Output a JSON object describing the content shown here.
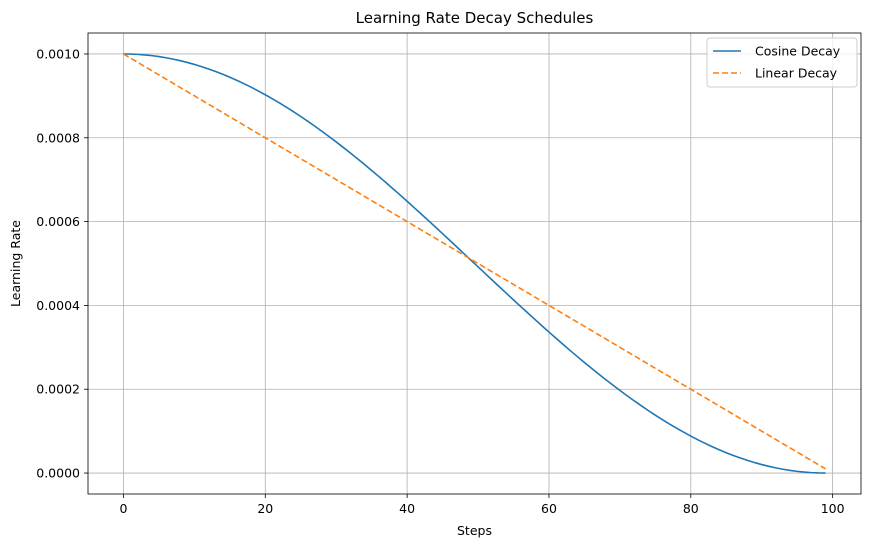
{
  "chart_data": {
    "type": "line",
    "title": "Learning Rate Decay Schedules",
    "xlabel": "Steps",
    "ylabel": "Learning Rate",
    "xlim": [
      -5,
      104
    ],
    "ylim": [
      -5e-05,
      0.00105
    ],
    "xticks": [
      0,
      20,
      40,
      60,
      80,
      100
    ],
    "xtick_labels": [
      "0",
      "20",
      "40",
      "60",
      "80",
      "100"
    ],
    "yticks": [
      0,
      0.0002,
      0.0004,
      0.0006,
      0.0008,
      0.001
    ],
    "ytick_labels": [
      "0.0000",
      "0.0002",
      "0.0004",
      "0.0006",
      "0.0008",
      "0.0010"
    ],
    "grid": true,
    "legend_position": "top-right",
    "x": [
      0,
      5,
      10,
      15,
      20,
      25,
      30,
      35,
      40,
      45,
      50,
      55,
      60,
      65,
      70,
      75,
      80,
      85,
      90,
      95,
      99
    ],
    "series": [
      {
        "name": "Cosine Decay",
        "color": "#1f77b4",
        "style": "solid",
        "values": [
          0.001,
          0.000994,
          0.000976,
          0.000946,
          0.000906,
          0.000856,
          0.000797,
          0.000732,
          0.000661,
          0.000586,
          0.000508,
          0.000429,
          0.000351,
          0.000277,
          0.000208,
          0.000146,
          9.3e-05,
          5.1e-05,
          2.1e-05,
          4e-06,
          0.0
        ]
      },
      {
        "name": "Linear Decay",
        "color": "#ff7f0e",
        "style": "dashed",
        "values": [
          0.001,
          0.00095,
          0.0009,
          0.00085,
          0.0008,
          0.00075,
          0.0007,
          0.00065,
          0.0006,
          0.00055,
          0.0005,
          0.00045,
          0.0004,
          0.00035,
          0.0003,
          0.00025,
          0.0002,
          0.00015,
          0.0001,
          5e-05,
          1e-05
        ]
      }
    ]
  }
}
